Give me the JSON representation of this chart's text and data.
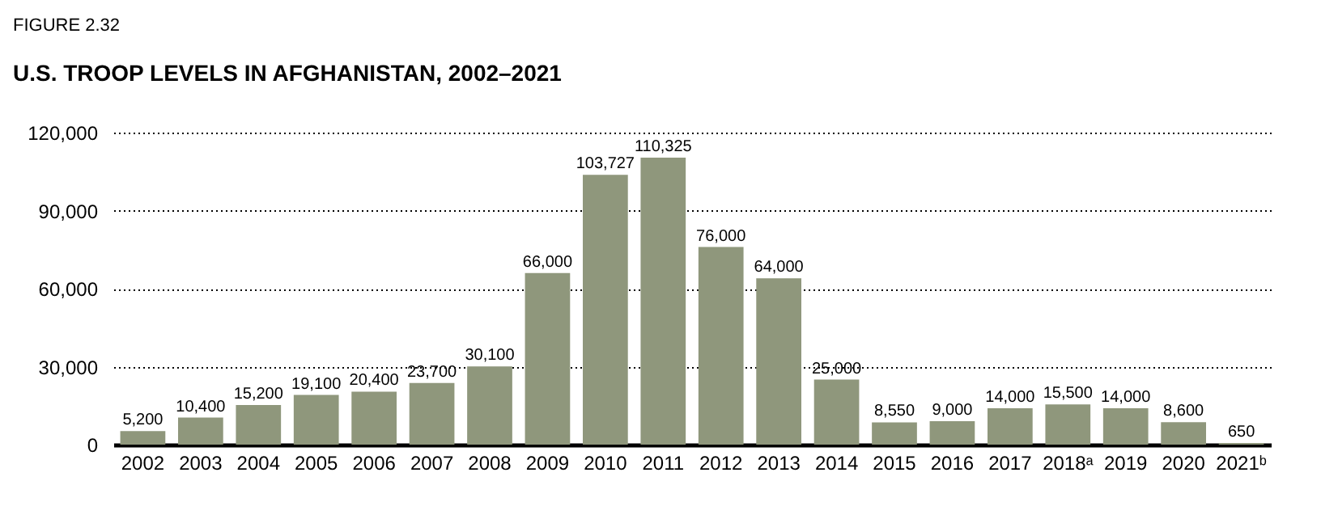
{
  "chart_data": {
    "type": "bar",
    "title": "U.S. TROOP LEVELS IN AFGHANISTAN, 2002–2021",
    "annotations": [
      "FIGURE 2.32"
    ],
    "categories": [
      "2002",
      "2003",
      "2004",
      "2005",
      "2006",
      "2007",
      "2008",
      "2009",
      "2010",
      "2011",
      "2012",
      "2013",
      "2014",
      "2015",
      "2016",
      "2017",
      "2018ᵃ",
      "2019",
      "2020",
      "2021ᵇ"
    ],
    "values": [
      5200,
      10400,
      15200,
      19100,
      20400,
      23700,
      30100,
      66000,
      103727,
      110325,
      76000,
      64000,
      25000,
      8550,
      9000,
      14000,
      15500,
      14000,
      8600,
      650
    ],
    "value_labels": [
      "5,200",
      "10,400",
      "15,200",
      "19,100",
      "20,400",
      "23,700",
      "30,100",
      "66,000",
      "103,727",
      "110,325",
      "76,000",
      "64,000",
      "25,000",
      "8,550",
      "9,000",
      "14,000",
      "15,500",
      "14,000",
      "8,600",
      "650"
    ],
    "color": "#8f977c",
    "ylim": [
      0,
      120000
    ],
    "yticks": [
      0,
      {
        "value": 30000,
        "label": "30,000"
      },
      {
        "value": 60000,
        "label": "60,000"
      },
      {
        "value": 90000,
        "label": "90,000"
      },
      {
        "value": 120000,
        "label": "120,000"
      }
    ],
    "grid": "y"
  }
}
